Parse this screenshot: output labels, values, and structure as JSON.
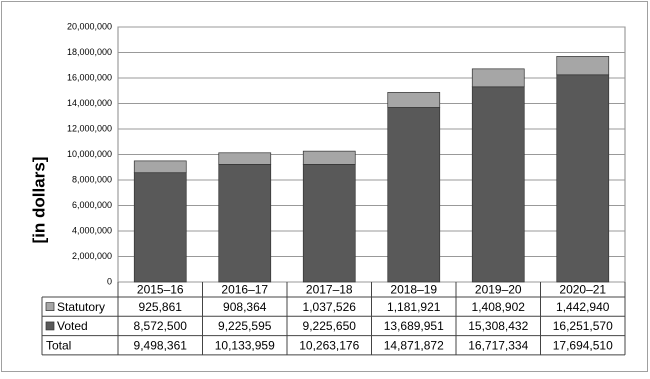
{
  "chart_data": {
    "type": "bar",
    "stacked": true,
    "ylabel": "[in dollars]",
    "categories": [
      "2015–16",
      "2016–17",
      "2017–18",
      "2018–19",
      "2019–20",
      "2020–21"
    ],
    "series": [
      {
        "name": "Voted",
        "color": "#595959",
        "values": [
          8572500,
          9225595,
          9225650,
          13689951,
          15308432,
          16251570
        ],
        "value_labels": [
          "8,572,500",
          "9,225,595",
          "9,225,650",
          "13,689,951",
          "15,308,432",
          "16,251,570"
        ]
      },
      {
        "name": "Statutory",
        "color": "#a6a6a6",
        "values": [
          925861,
          908364,
          1037526,
          1181921,
          1408902,
          1442940
        ],
        "value_labels": [
          "925,861",
          "908,364",
          "1,037,526",
          "1,181,921",
          "1,408,902",
          "1,442,940"
        ]
      }
    ],
    "totals": {
      "name": "Total",
      "values": [
        9498361,
        10133959,
        10263176,
        14871872,
        16717334,
        17694510
      ],
      "value_labels": [
        "9,498,361",
        "10,133,959",
        "10,263,176",
        "14,871,872",
        "16,717,334",
        "17,694,510"
      ]
    },
    "ylim": [
      0,
      20000000
    ],
    "yticks": [
      {
        "value": 0,
        "label": "0"
      },
      {
        "value": 2000000,
        "label": "2,000,000"
      },
      {
        "value": 4000000,
        "label": "4,000,000"
      },
      {
        "value": 6000000,
        "label": "6,000,000"
      },
      {
        "value": 8000000,
        "label": "8,000,000"
      },
      {
        "value": 10000000,
        "label": "10,000,000"
      },
      {
        "value": 12000000,
        "label": "12,000,000"
      },
      {
        "value": 14000000,
        "label": "14,000,000"
      },
      {
        "value": 16000000,
        "label": "16,000,000"
      },
      {
        "value": 18000000,
        "label": "18,000,000"
      },
      {
        "value": 20000000,
        "label": "20,000,000"
      }
    ],
    "grid": true
  }
}
